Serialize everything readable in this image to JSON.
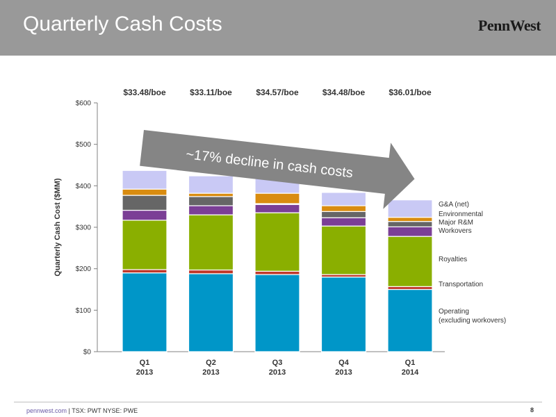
{
  "header": {
    "title": "Quarterly Cash Costs",
    "logo": "PennWest"
  },
  "footer": {
    "site": "pennwest.com",
    "separator": " | ",
    "tickers": "TSX: PWT  NYSE: PWE",
    "page": "8"
  },
  "annotation": {
    "text": "~17% decline in cash costs"
  },
  "colors": {
    "operating": "#0096c8",
    "transportation": "#c0392b",
    "royalties": "#8aaf00",
    "workovers": "#7b3f96",
    "major_rm": "#666666",
    "environmental": "#d98c10",
    "ga": "#c9c9f5",
    "arrow": "#858585"
  },
  "chart_data": {
    "type": "bar",
    "stacked": true,
    "ylabel": "Quarterly Cash Cost ($MM)",
    "ylim": [
      0,
      600
    ],
    "yticks": [
      0,
      100,
      200,
      300,
      400,
      500,
      600
    ],
    "ytick_labels": [
      "$0",
      "$100",
      "$200",
      "$300",
      "$400",
      "$500",
      "$600"
    ],
    "categories": [
      [
        "Q1",
        "2013"
      ],
      [
        "Q2",
        "2013"
      ],
      [
        "Q3",
        "2013"
      ],
      [
        "Q4",
        "2013"
      ],
      [
        "Q1",
        "2014"
      ]
    ],
    "per_boe": [
      "$33.48/boe",
      "$33.11/boe",
      "$34.57/boe",
      "$34.48/boe",
      "$36.01/boe"
    ],
    "series": [
      {
        "name": "Operating (excluding workovers)",
        "legend_lines": [
          "Operating",
          "(excluding workovers)"
        ],
        "color_key": "operating",
        "values": [
          190,
          188,
          186,
          180,
          150
        ]
      },
      {
        "name": "Transportation",
        "legend_lines": [
          "Transportation"
        ],
        "color_key": "transportation",
        "values": [
          8,
          9,
          8,
          6,
          7
        ]
      },
      {
        "name": "Royalties",
        "legend_lines": [
          "Royalties"
        ],
        "color_key": "royalties",
        "values": [
          119,
          133,
          141,
          117,
          121
        ]
      },
      {
        "name": "Workovers",
        "legend_lines": [
          "Workovers"
        ],
        "color_key": "workovers",
        "values": [
          24,
          22,
          20,
          20,
          23
        ]
      },
      {
        "name": "Major R&M",
        "legend_lines": [
          "Major R&M"
        ],
        "color_key": "major_rm",
        "values": [
          36,
          22,
          2,
          15,
          13
        ]
      },
      {
        "name": "Environmental",
        "legend_lines": [
          "Environmental"
        ],
        "color_key": "environmental",
        "values": [
          15,
          8,
          25,
          14,
          10
        ]
      },
      {
        "name": "G&A (net)",
        "legend_lines": [
          "G&A (net)"
        ],
        "color_key": "ga",
        "values": [
          45,
          42,
          40,
          32,
          42
        ]
      }
    ]
  }
}
